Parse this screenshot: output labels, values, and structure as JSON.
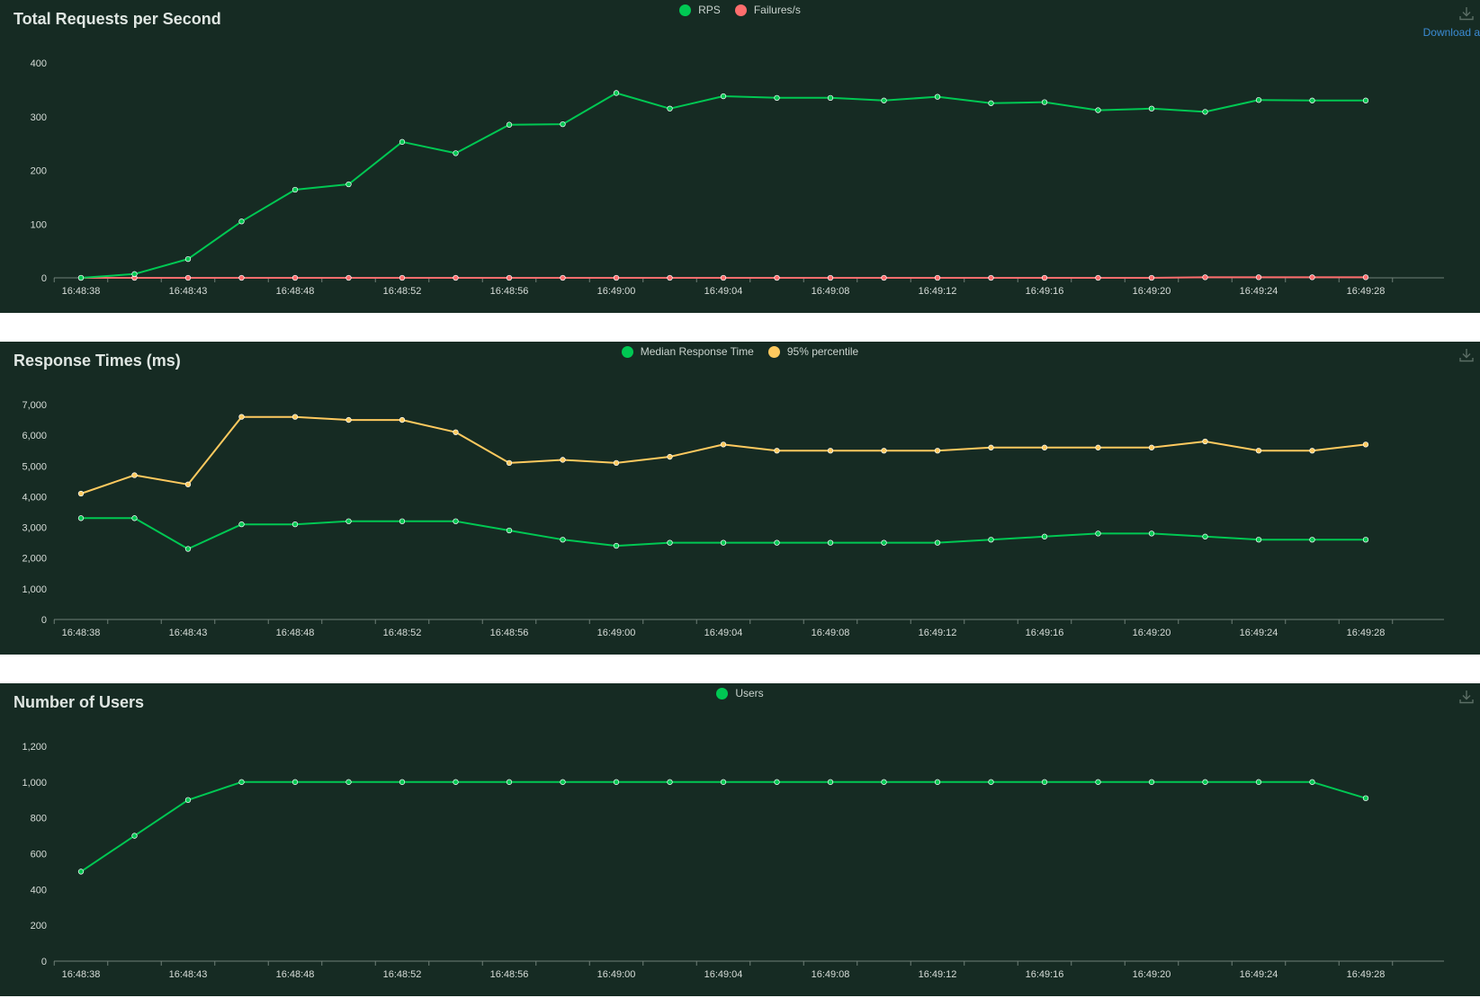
{
  "download_label": "Download a",
  "chart_data": [
    {
      "type": "line",
      "title": "Total Requests per Second",
      "x": [
        "16:48:38",
        "16:48:41",
        "16:48:43",
        "16:48:46",
        "16:48:48",
        "16:48:50",
        "16:48:52",
        "16:48:54",
        "16:48:56",
        "16:48:58",
        "16:49:00",
        "16:49:02",
        "16:49:04",
        "16:49:06",
        "16:49:08",
        "16:49:10",
        "16:49:12",
        "16:49:14",
        "16:49:16",
        "16:49:18",
        "16:49:20",
        "16:49:22",
        "16:49:24",
        "16:49:26",
        "16:49:28"
      ],
      "x_ticks": [
        "16:48:38",
        "16:48:43",
        "16:48:48",
        "16:48:52",
        "16:48:56",
        "16:49:00",
        "16:49:04",
        "16:49:08",
        "16:49:12",
        "16:49:16",
        "16:49:20",
        "16:49:24",
        "16:49:28"
      ],
      "ylim": [
        0,
        400
      ],
      "y_ticks": [
        "0",
        "100",
        "200",
        "300",
        "400"
      ],
      "legend_position": "top-center",
      "grid": false,
      "series": [
        {
          "name": "RPS",
          "color": "#00c853",
          "values": [
            0,
            7,
            35,
            105,
            164,
            174,
            253,
            232,
            285,
            286,
            344,
            315,
            338,
            335,
            335,
            330,
            337,
            325,
            327,
            312,
            315,
            309,
            331,
            330,
            330
          ]
        },
        {
          "name": "Failures/s",
          "color": "#ff6d6d",
          "values": [
            0,
            0,
            0,
            0,
            0,
            0,
            0,
            0,
            0,
            0,
            0,
            0,
            0,
            0,
            0,
            0,
            0,
            0,
            0,
            0,
            0,
            1,
            1,
            1,
            1
          ]
        }
      ]
    },
    {
      "type": "line",
      "title": "Response Times (ms)",
      "x": [
        "16:48:38",
        "16:48:41",
        "16:48:43",
        "16:48:46",
        "16:48:48",
        "16:48:50",
        "16:48:52",
        "16:48:54",
        "16:48:56",
        "16:48:58",
        "16:49:00",
        "16:49:02",
        "16:49:04",
        "16:49:06",
        "16:49:08",
        "16:49:10",
        "16:49:12",
        "16:49:14",
        "16:49:16",
        "16:49:18",
        "16:49:20",
        "16:49:22",
        "16:49:24",
        "16:49:26",
        "16:49:28"
      ],
      "x_ticks": [
        "16:48:38",
        "16:48:43",
        "16:48:48",
        "16:48:52",
        "16:48:56",
        "16:49:00",
        "16:49:04",
        "16:49:08",
        "16:49:12",
        "16:49:16",
        "16:49:20",
        "16:49:24",
        "16:49:28"
      ],
      "ylim": [
        0,
        7000
      ],
      "y_ticks": [
        "0",
        "1,000",
        "2,000",
        "3,000",
        "4,000",
        "5,000",
        "6,000",
        "7,000"
      ],
      "legend_position": "top-center",
      "grid": false,
      "series": [
        {
          "name": "Median Response Time",
          "color": "#00c853",
          "values": [
            3300,
            3300,
            2300,
            3100,
            3100,
            3200,
            3200,
            3200,
            2900,
            2600,
            2400,
            2500,
            2500,
            2500,
            2500,
            2500,
            2500,
            2600,
            2700,
            2800,
            2800,
            2700,
            2600,
            2600,
            2600
          ]
        },
        {
          "name": "95% percentile",
          "color": "#ffca5f",
          "values": [
            4100,
            4700,
            4400,
            6600,
            6600,
            6500,
            6500,
            6100,
            5100,
            5200,
            5100,
            5300,
            5700,
            5500,
            5500,
            5500,
            5500,
            5600,
            5600,
            5600,
            5600,
            5800,
            5500,
            5500,
            5700
          ]
        }
      ]
    },
    {
      "type": "line",
      "title": "Number of Users",
      "x": [
        "16:48:38",
        "16:48:41",
        "16:48:43",
        "16:48:46",
        "16:48:48",
        "16:48:50",
        "16:48:52",
        "16:48:54",
        "16:48:56",
        "16:48:58",
        "16:49:00",
        "16:49:02",
        "16:49:04",
        "16:49:06",
        "16:49:08",
        "16:49:10",
        "16:49:12",
        "16:49:14",
        "16:49:16",
        "16:49:18",
        "16:49:20",
        "16:49:22",
        "16:49:24",
        "16:49:26",
        "16:49:28"
      ],
      "x_ticks": [
        "16:48:38",
        "16:48:43",
        "16:48:48",
        "16:48:52",
        "16:48:56",
        "16:49:00",
        "16:49:04",
        "16:49:08",
        "16:49:12",
        "16:49:16",
        "16:49:20",
        "16:49:24",
        "16:49:28"
      ],
      "ylim": [
        0,
        1200
      ],
      "y_ticks": [
        "0",
        "200",
        "400",
        "600",
        "800",
        "1,000",
        "1,200"
      ],
      "legend_position": "top-center",
      "grid": false,
      "series": [
        {
          "name": "Users",
          "color": "#00c853",
          "values": [
            500,
            700,
            900,
            1000,
            1000,
            1000,
            1000,
            1000,
            1000,
            1000,
            1000,
            1000,
            1000,
            1000,
            1000,
            1000,
            1000,
            1000,
            1000,
            1000,
            1000,
            1000,
            1000,
            1000,
            910
          ]
        }
      ]
    }
  ]
}
